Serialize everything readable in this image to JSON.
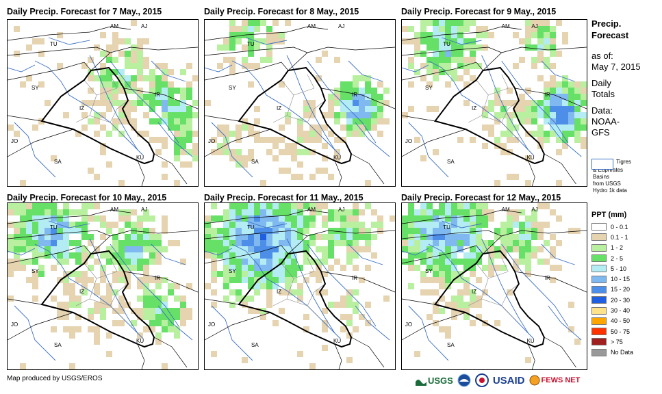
{
  "panels": [
    {
      "title": "Daily Precip. Forecast for 7 May., 2015"
    },
    {
      "title": "Daily Precip. Forecast for 8 May., 2015"
    },
    {
      "title": "Daily Precip. Forecast for 9 May., 2015"
    },
    {
      "title": "Daily Precip. Forecast for 10 May., 2015"
    },
    {
      "title": "Daily Precip. Forecast for 11 May., 2015"
    },
    {
      "title": "Daily Precip. Forecast for 12 May., 2015"
    }
  ],
  "map_labels": {
    "am": "AM",
    "aj": "AJ",
    "tu": "TU",
    "sy": "SY",
    "iz": "IZ",
    "ir": "IR",
    "jo": "JO",
    "sa": "SA",
    "ku": "KU"
  },
  "sidebar": {
    "title_line1": "Precip.",
    "title_line2": "Forecast",
    "asof_label": "as of:",
    "asof_date": "May 7, 2015",
    "totals_line1": "Daily",
    "totals_line2": "Totals",
    "data_label": "Data:",
    "data_source_line1": "NOAA-",
    "data_source_line2": "GFS"
  },
  "basin_legend": {
    "line1": "Tigres",
    "line2": "& Euphrates",
    "line3": "Basins",
    "line4": "from USGS",
    "line5": "Hydro 1k data"
  },
  "legend": {
    "title": "PPT (mm)",
    "items": [
      {
        "label": "0 - 0.1",
        "color": "#ffffff"
      },
      {
        "label": "0.1 - 1",
        "color": "#e6d3b0"
      },
      {
        "label": "1 - 2",
        "color": "#b8f0a0"
      },
      {
        "label": "2 - 5",
        "color": "#66e066"
      },
      {
        "label": "5 - 10",
        "color": "#b4ecf4"
      },
      {
        "label": "10 - 15",
        "color": "#80b8f0"
      },
      {
        "label": "15 - 20",
        "color": "#4d8ee8"
      },
      {
        "label": "20 - 30",
        "color": "#1f5fe0"
      },
      {
        "label": "30 - 40",
        "color": "#ffe38a"
      },
      {
        "label": "40 - 50",
        "color": "#ffa500"
      },
      {
        "label": "50 - 75",
        "color": "#ff3300"
      },
      {
        "label": "> 75",
        "color": "#a02020"
      },
      {
        "label": "No Data",
        "color": "#999999"
      }
    ]
  },
  "credit": "Map produced by USGS/EROS",
  "logos": {
    "usgs": "USGS",
    "usaid": "USAID",
    "fews": "FEWS NET"
  }
}
